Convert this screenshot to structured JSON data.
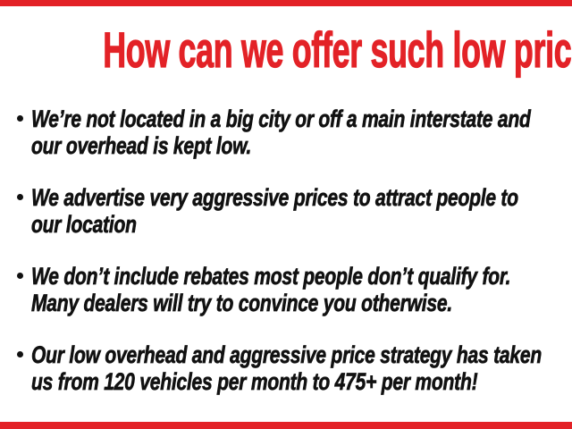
{
  "page": {
    "title": "How can we offer such low prices?",
    "bullets": [
      "We’re not located in a big city or off a main interstate and\nour overhead is kept low.",
      "We advertise very aggressive prices to attract people to\nour location",
      "We don’t include rebates most people don’t qualify for.\nMany dealers will try to convince you otherwise.",
      "Our low overhead and aggressive price strategy has taken\nus from 120 vehicles per month to 475+ per month!"
    ],
    "colors": {
      "accent_red": "#e32227",
      "text_black": "#111111",
      "background": "#ffffff"
    }
  }
}
